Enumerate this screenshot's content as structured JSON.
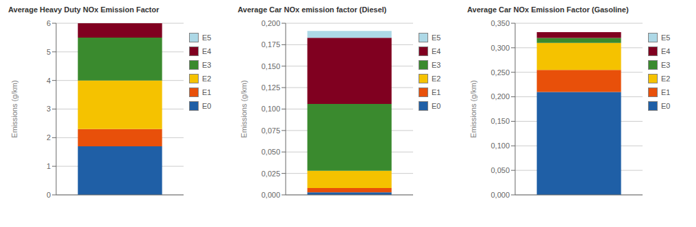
{
  "chart_data": [
    {
      "type": "bar",
      "stacked": true,
      "title": "Average Heavy Duty NOx Emission Factor",
      "y_label": "Emissions (g/km)",
      "categories": [
        null
      ],
      "series": [
        {
          "name": "E0",
          "color": "#1F5FA6",
          "values": [
            1.7
          ]
        },
        {
          "name": "E1",
          "color": "#E8500A",
          "values": [
            0.6
          ]
        },
        {
          "name": "E2",
          "color": "#F5C200",
          "values": [
            1.7
          ]
        },
        {
          "name": "E3",
          "color": "#3A8A2E",
          "values": [
            1.5
          ]
        },
        {
          "name": "E4",
          "color": "#800020",
          "values": [
            0.5
          ]
        },
        {
          "name": "E5",
          "color": "#ADD8E6",
          "values": [
            0.0
          ]
        }
      ],
      "ylim": [
        0,
        6
      ],
      "yticks": [
        0,
        1,
        2,
        3,
        4,
        5,
        6
      ],
      "grid": true,
      "legend": "right",
      "tick_labels": "y"
    },
    {
      "type": "bar",
      "stacked": true,
      "title": "Average Car NOx emission factor (Diesel)",
      "y_label": "Emissions (g/km)",
      "categories": [
        null
      ],
      "series": [
        {
          "name": "E0",
          "color": "#1F5FA6",
          "values": [
            0.003
          ]
        },
        {
          "name": "E1",
          "color": "#E8500A",
          "values": [
            0.005
          ]
        },
        {
          "name": "E2",
          "color": "#F5C200",
          "values": [
            0.02
          ]
        },
        {
          "name": "E3",
          "color": "#3A8A2E",
          "values": [
            0.078
          ]
        },
        {
          "name": "E4",
          "color": "#800020",
          "values": [
            0.077
          ]
        },
        {
          "name": "E5",
          "color": "#ADD8E6",
          "values": [
            0.008
          ]
        }
      ],
      "ylim": [
        0,
        0.2
      ],
      "yticks": [
        {
          "value": 0.0,
          "label": "0,000"
        },
        {
          "value": 0.025,
          "label": "0,025"
        },
        {
          "value": 0.05,
          "label": "0,050"
        },
        {
          "value": 0.075,
          "label": "0,075"
        },
        {
          "value": 0.1,
          "label": "0,100"
        },
        {
          "value": 0.125,
          "label": "0,125"
        },
        {
          "value": 0.15,
          "label": "0,150"
        },
        {
          "value": 0.175,
          "label": "0,175"
        },
        {
          "value": 0.2,
          "label": "0,200"
        }
      ],
      "grid": true,
      "legend": "right",
      "tick_labels": "y"
    },
    {
      "type": "bar",
      "stacked": true,
      "title": "Average Car NOx Emission Factor (Gasoline)",
      "y_label": "Emissions (g/km)",
      "categories": [
        null
      ],
      "series": [
        {
          "name": "E0",
          "color": "#1F5FA6",
          "values": [
            0.21
          ]
        },
        {
          "name": "E1",
          "color": "#E8500A",
          "values": [
            0.045
          ]
        },
        {
          "name": "E2",
          "color": "#F5C200",
          "values": [
            0.055
          ]
        },
        {
          "name": "E3",
          "color": "#3A8A2E",
          "values": [
            0.01
          ]
        },
        {
          "name": "E4",
          "color": "#800020",
          "values": [
            0.012
          ]
        },
        {
          "name": "E5",
          "color": "#ADD8E6",
          "values": [
            0.0
          ]
        }
      ],
      "ylim": [
        0,
        0.35
      ],
      "yticks": [
        {
          "value": 0.0,
          "label": "0,000"
        },
        {
          "value": 0.05,
          "label": "0,050"
        },
        {
          "value": 0.1,
          "label": "0,100"
        },
        {
          "value": 0.15,
          "label": "0,150"
        },
        {
          "value": 0.2,
          "label": "0,200"
        },
        {
          "value": 0.25,
          "label": "0,250"
        },
        {
          "value": 0.3,
          "label": "0,300"
        },
        {
          "value": 0.35,
          "label": "0,350"
        }
      ],
      "grid": true,
      "legend": "right",
      "tick_labels": "y"
    }
  ]
}
